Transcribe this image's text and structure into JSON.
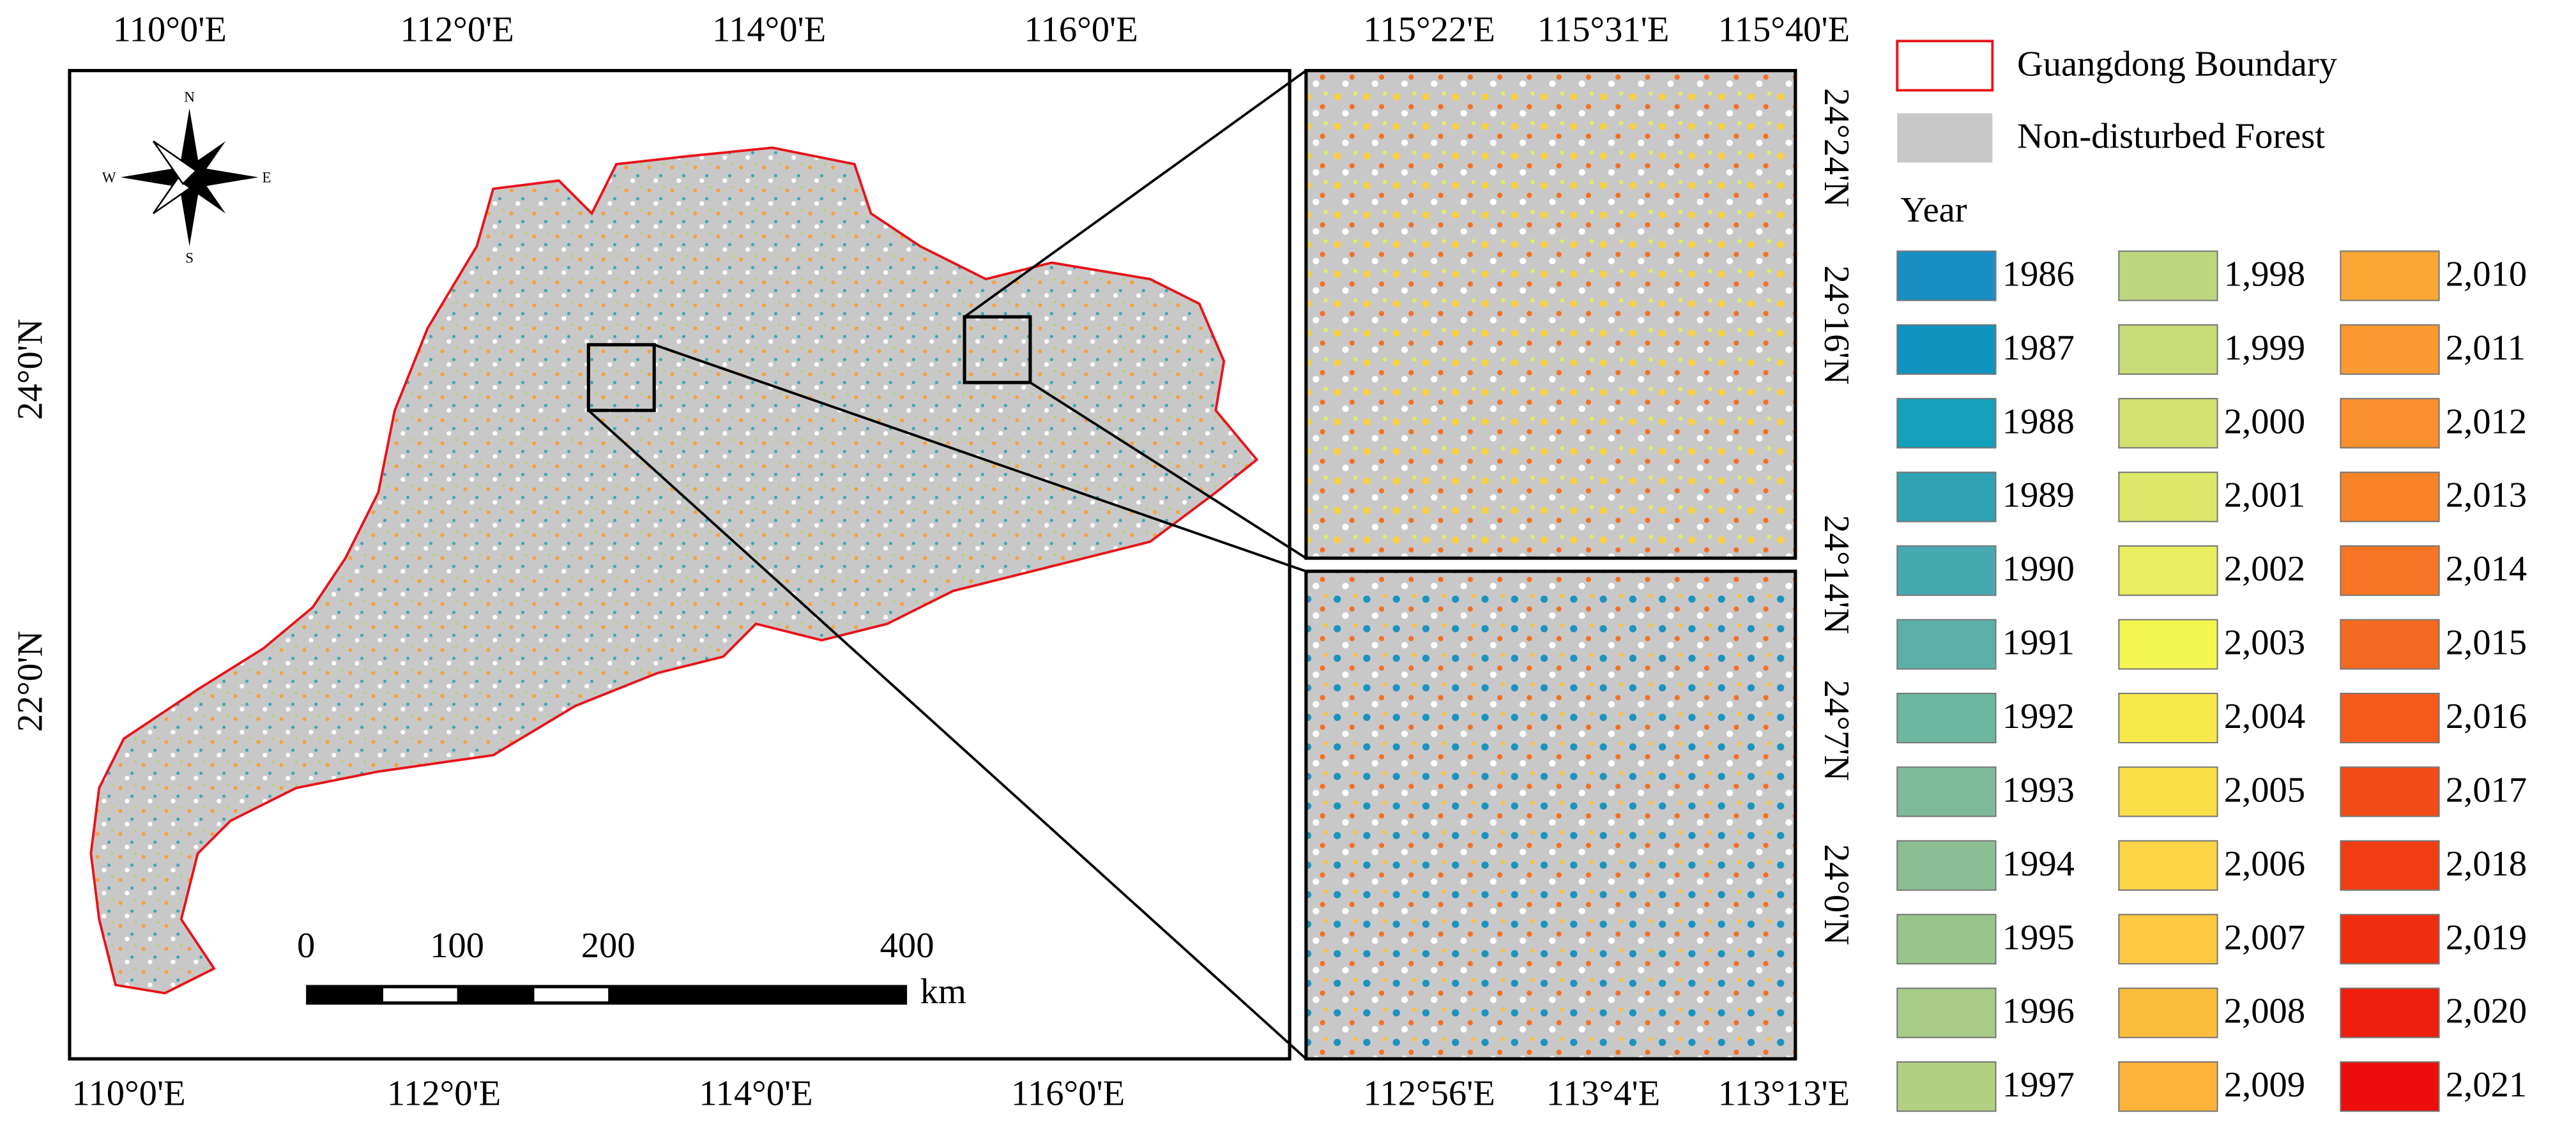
{
  "map": {
    "top_longitudes": [
      "110°0'E",
      "112°0'E",
      "114°0'E",
      "116°0'E"
    ],
    "bottom_longitudes": [
      "110°0'E",
      "112°0'E",
      "114°0'E",
      "116°0'E"
    ],
    "latitudes": [
      "24°0'N",
      "22°0'N"
    ],
    "compass": {
      "n": "N",
      "s": "S",
      "e": "E",
      "w": "W"
    },
    "scale_bar": {
      "labels": [
        "0",
        "100",
        "200",
        "400"
      ],
      "unit": "km"
    },
    "boundary_color": "#e8131a",
    "forest_color": "#c8c8c8"
  },
  "inset_top": {
    "longitudes": [
      "115°22'E",
      "115°31'E",
      "115°40'E"
    ],
    "latitudes": [
      "24°24'N",
      "24°16'N"
    ]
  },
  "inset_bottom": {
    "longitudes": [
      "112°56'E",
      "113°4'E",
      "113°13'E"
    ],
    "latitudes": [
      "24°14'N",
      "24°7'N",
      "24°0'N"
    ]
  },
  "legend": {
    "boundary": "Guangdong Boundary",
    "forest": "Non-disturbed Forest",
    "year_title": "Year",
    "items": [
      {
        "label": "1986",
        "color": "#1a8fc4"
      },
      {
        "label": "1987",
        "color": "#0f93bf"
      },
      {
        "label": "1988",
        "color": "#13a0b8"
      },
      {
        "label": "1989",
        "color": "#2ea3b4"
      },
      {
        "label": "1990",
        "color": "#45a9b0"
      },
      {
        "label": "1991",
        "color": "#5bb1a8"
      },
      {
        "label": "1992",
        "color": "#6db6a0"
      },
      {
        "label": "1993",
        "color": "#7dbb9c"
      },
      {
        "label": "1994",
        "color": "#8bbf93"
      },
      {
        "label": "1995",
        "color": "#99c58d"
      },
      {
        "label": "1996",
        "color": "#a8cb88"
      },
      {
        "label": "1997",
        "color": "#b3d082"
      },
      {
        "label": "1,998",
        "color": "#bed67e"
      },
      {
        "label": "1,999",
        "color": "#c8dc78"
      },
      {
        "label": "2,000",
        "color": "#d2e170"
      },
      {
        "label": "2,001",
        "color": "#dde86a"
      },
      {
        "label": "2,002",
        "color": "#e8ee60"
      },
      {
        "label": "2,003",
        "color": "#f3f64f"
      },
      {
        "label": "2,004",
        "color": "#f8e94a"
      },
      {
        "label": "2,005",
        "color": "#fadf48"
      },
      {
        "label": "2,006",
        "color": "#fbd445"
      },
      {
        "label": "2,007",
        "color": "#fcc940"
      },
      {
        "label": "2,008",
        "color": "#fcbd3c"
      },
      {
        "label": "2,009",
        "color": "#fcb238"
      },
      {
        "label": "2,010",
        "color": "#fba735"
      },
      {
        "label": "2,011",
        "color": "#fa9a30"
      },
      {
        "label": "2,012",
        "color": "#f98e2c"
      },
      {
        "label": "2,013",
        "color": "#f88228"
      },
      {
        "label": "2,014",
        "color": "#f77524"
      },
      {
        "label": "2,015",
        "color": "#f56820"
      },
      {
        "label": "2,016",
        "color": "#f45a1c"
      },
      {
        "label": "2,017",
        "color": "#f24c18"
      },
      {
        "label": "2,018",
        "color": "#f03e14"
      },
      {
        "label": "2,019",
        "color": "#ef2e10"
      },
      {
        "label": "2,020",
        "color": "#ee1f0c"
      },
      {
        "label": "2,021",
        "color": "#ec0e0a"
      }
    ]
  }
}
